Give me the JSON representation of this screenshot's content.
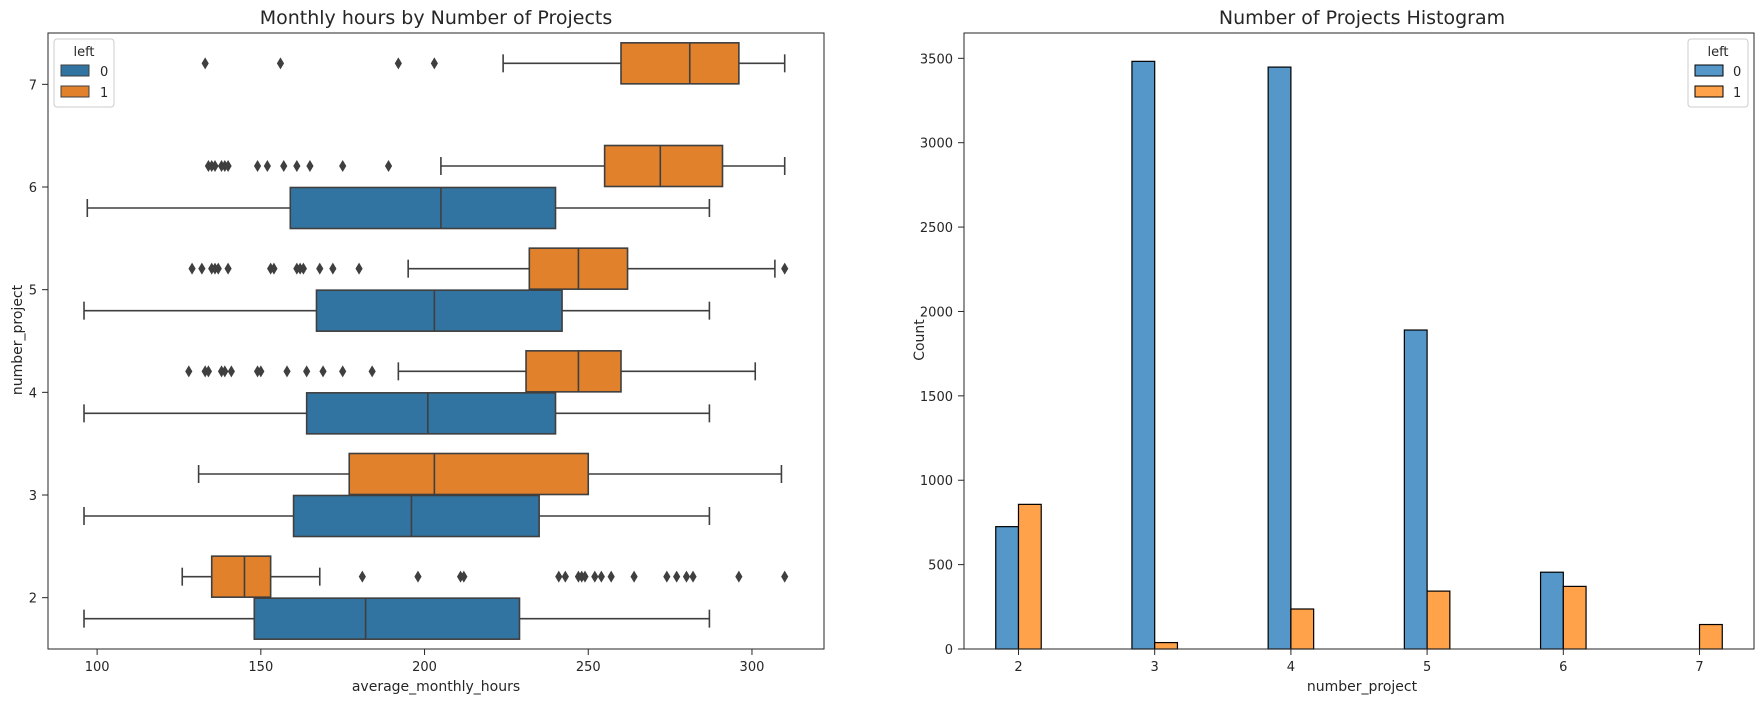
{
  "chart_data": [
    {
      "type": "boxplot",
      "orientation": "horizontal",
      "title": "Monthly hours by Number of Projects",
      "xlabel": "average_monthly_hours",
      "ylabel": "number_project",
      "xlim": [
        85,
        322
      ],
      "xticks": [
        100,
        150,
        200,
        250,
        300
      ],
      "ylim": [
        1.5,
        7.5
      ],
      "yticks": [
        2,
        3,
        4,
        5,
        6,
        7
      ],
      "grid": false,
      "legend": {
        "title": "left",
        "placement": "top-left",
        "entries": [
          "0",
          "1"
        ]
      },
      "series": [
        {
          "name": "0",
          "color": "#3274a1",
          "boxes": [
            {
              "group": 2,
              "whislo": 96,
              "q1": 148,
              "med": 182,
              "q3": 229,
              "whishi": 287,
              "fliers": []
            },
            {
              "group": 3,
              "whislo": 96,
              "q1": 160,
              "med": 196,
              "q3": 235,
              "whishi": 287,
              "fliers": []
            },
            {
              "group": 4,
              "whislo": 96,
              "q1": 164,
              "med": 201,
              "q3": 240,
              "whishi": 287,
              "fliers": []
            },
            {
              "group": 5,
              "whislo": 96,
              "q1": 167,
              "med": 203,
              "q3": 242,
              "whishi": 287,
              "fliers": []
            },
            {
              "group": 6,
              "whislo": 97,
              "q1": 159,
              "med": 205,
              "q3": 240,
              "whishi": 287,
              "fliers": []
            }
          ]
        },
        {
          "name": "1",
          "color": "#e1812c",
          "boxes": [
            {
              "group": 2,
              "whislo": 126,
              "q1": 135,
              "med": 145,
              "q3": 153,
              "whishi": 168,
              "fliers": [
                181,
                198,
                211,
                212,
                241,
                243,
                247,
                248,
                249,
                252,
                254,
                257,
                264,
                274,
                277,
                280,
                282,
                296,
                310
              ]
            },
            {
              "group": 3,
              "whislo": 131,
              "q1": 177,
              "med": 203,
              "q3": 250,
              "whishi": 309,
              "fliers": []
            },
            {
              "group": 4,
              "whislo": 192,
              "q1": 231,
              "med": 247,
              "q3": 260,
              "whishi": 301,
              "fliers": [
                128,
                133,
                134,
                138,
                139,
                141,
                149,
                150,
                158,
                164,
                169,
                175,
                184
              ]
            },
            {
              "group": 5,
              "whislo": 195,
              "q1": 232,
              "med": 247,
              "q3": 262,
              "whishi": 307,
              "fliers": [
                129,
                132,
                135,
                136,
                137,
                140,
                153,
                154,
                161,
                162,
                163,
                168,
                172,
                180,
                310
              ]
            },
            {
              "group": 6,
              "whislo": 205,
              "q1": 255,
              "med": 272,
              "q3": 291,
              "whishi": 310,
              "fliers": [
                134,
                135,
                136,
                138,
                139,
                140,
                149,
                152,
                157,
                161,
                165,
                175,
                189
              ]
            },
            {
              "group": 7,
              "whislo": 224,
              "q1": 260,
              "med": 281,
              "q3": 296,
              "whishi": 310,
              "fliers": [
                133,
                156,
                192,
                203
              ]
            }
          ]
        }
      ]
    },
    {
      "type": "bar",
      "title": "Number of Projects Histogram",
      "xlabel": "number_project",
      "ylabel": "Count",
      "xlim": [
        1.6,
        7.4
      ],
      "xticks": [
        2,
        3,
        4,
        5,
        6,
        7
      ],
      "ylim": [
        0,
        3650
      ],
      "yticks": [
        0,
        500,
        1000,
        1500,
        2000,
        2500,
        3000,
        3500
      ],
      "grid": false,
      "legend": {
        "title": "left",
        "placement": "top-right",
        "entries": [
          "0",
          "1"
        ]
      },
      "categories": [
        2,
        3,
        4,
        5,
        6,
        7
      ],
      "series": [
        {
          "name": "0",
          "color": "#5497c8",
          "values": [
            725,
            3482,
            3448,
            1890,
            455,
            0
          ]
        },
        {
          "name": "1",
          "color": "#ffa24a",
          "values": [
            857,
            38,
            237,
            343,
            371,
            145
          ]
        }
      ]
    }
  ]
}
